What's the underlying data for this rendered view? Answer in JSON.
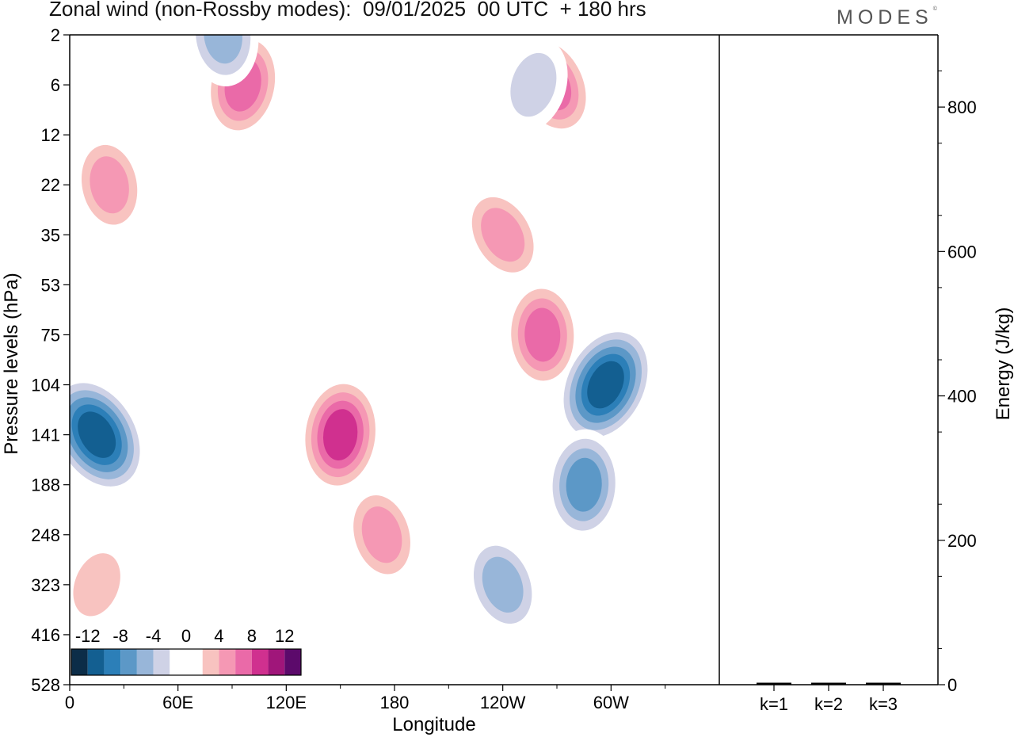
{
  "header": {
    "title": "Zonal wind (non-Rossby modes):  09/01/2025  00 UTC  + 180 hrs",
    "brand": "MODES",
    "brand_mark": "©"
  },
  "chart_data": [
    {
      "type": "heatmap",
      "title": "Zonal wind (non-Rossby modes):  09/01/2025  00 UTC  + 180 hrs",
      "xlabel": "Longitude",
      "ylabel": "Pressure levels (hPa)",
      "x_ticks": [
        "0",
        "60E",
        "120E",
        "180",
        "120W",
        "60W"
      ],
      "x_range_deg_east": [
        0,
        360
      ],
      "y_ticks": [
        "2",
        "6",
        "12",
        "22",
        "35",
        "53",
        "75",
        "104",
        "141",
        "188",
        "248",
        "323",
        "416",
        "528"
      ],
      "colorbar": {
        "tick_labels": [
          "-12",
          "-8",
          "-4",
          "0",
          "4",
          "8",
          "12"
        ],
        "levels": [
          -14,
          -12,
          -10,
          -8,
          -6,
          -4,
          -2,
          0,
          2,
          4,
          6,
          8,
          10,
          12,
          14
        ],
        "colors": [
          "#0c2d48",
          "#135f91",
          "#2c7fb8",
          "#5c98c7",
          "#98b6d9",
          "#cfd2e6",
          "#ffffff",
          "#ffffff",
          "#f8c3c0",
          "#f598b4",
          "#ea6aa8",
          "#d0308f",
          "#a0167a",
          "#5c0a6b"
        ]
      },
      "features": [
        {
          "lon": 15,
          "level": "141",
          "value": -13
        },
        {
          "lon": 150,
          "level": "141",
          "value": 10
        },
        {
          "lon": 173,
          "level": "248",
          "value": 7
        },
        {
          "lon": 15,
          "level": "323",
          "value": 5
        },
        {
          "lon": 262,
          "level": "75",
          "value": 9
        },
        {
          "lon": 267,
          "level": "6",
          "value": 9
        },
        {
          "lon": 96,
          "level": "6",
          "value": 8
        },
        {
          "lon": 22,
          "level": "22",
          "value": 7
        },
        {
          "lon": 297,
          "level": "104",
          "value": -12
        },
        {
          "lon": 285,
          "level": "188",
          "value": -9
        },
        {
          "lon": 240,
          "level": "323",
          "value": -7
        },
        {
          "lon": 257,
          "level": "6",
          "value": -5
        },
        {
          "lon": 85,
          "level": "2",
          "value": -7
        },
        {
          "lon": 240,
          "level": "35",
          "value": 6
        }
      ]
    },
    {
      "type": "bar",
      "ylabel": "Energy (J/kg)",
      "categories": [
        "k=1",
        "k=2",
        "k=3"
      ],
      "values": [
        0,
        0,
        0
      ],
      "ylim": [
        0,
        900
      ],
      "y_ticks": [
        "0",
        "200",
        "400",
        "600",
        "800"
      ]
    }
  ]
}
